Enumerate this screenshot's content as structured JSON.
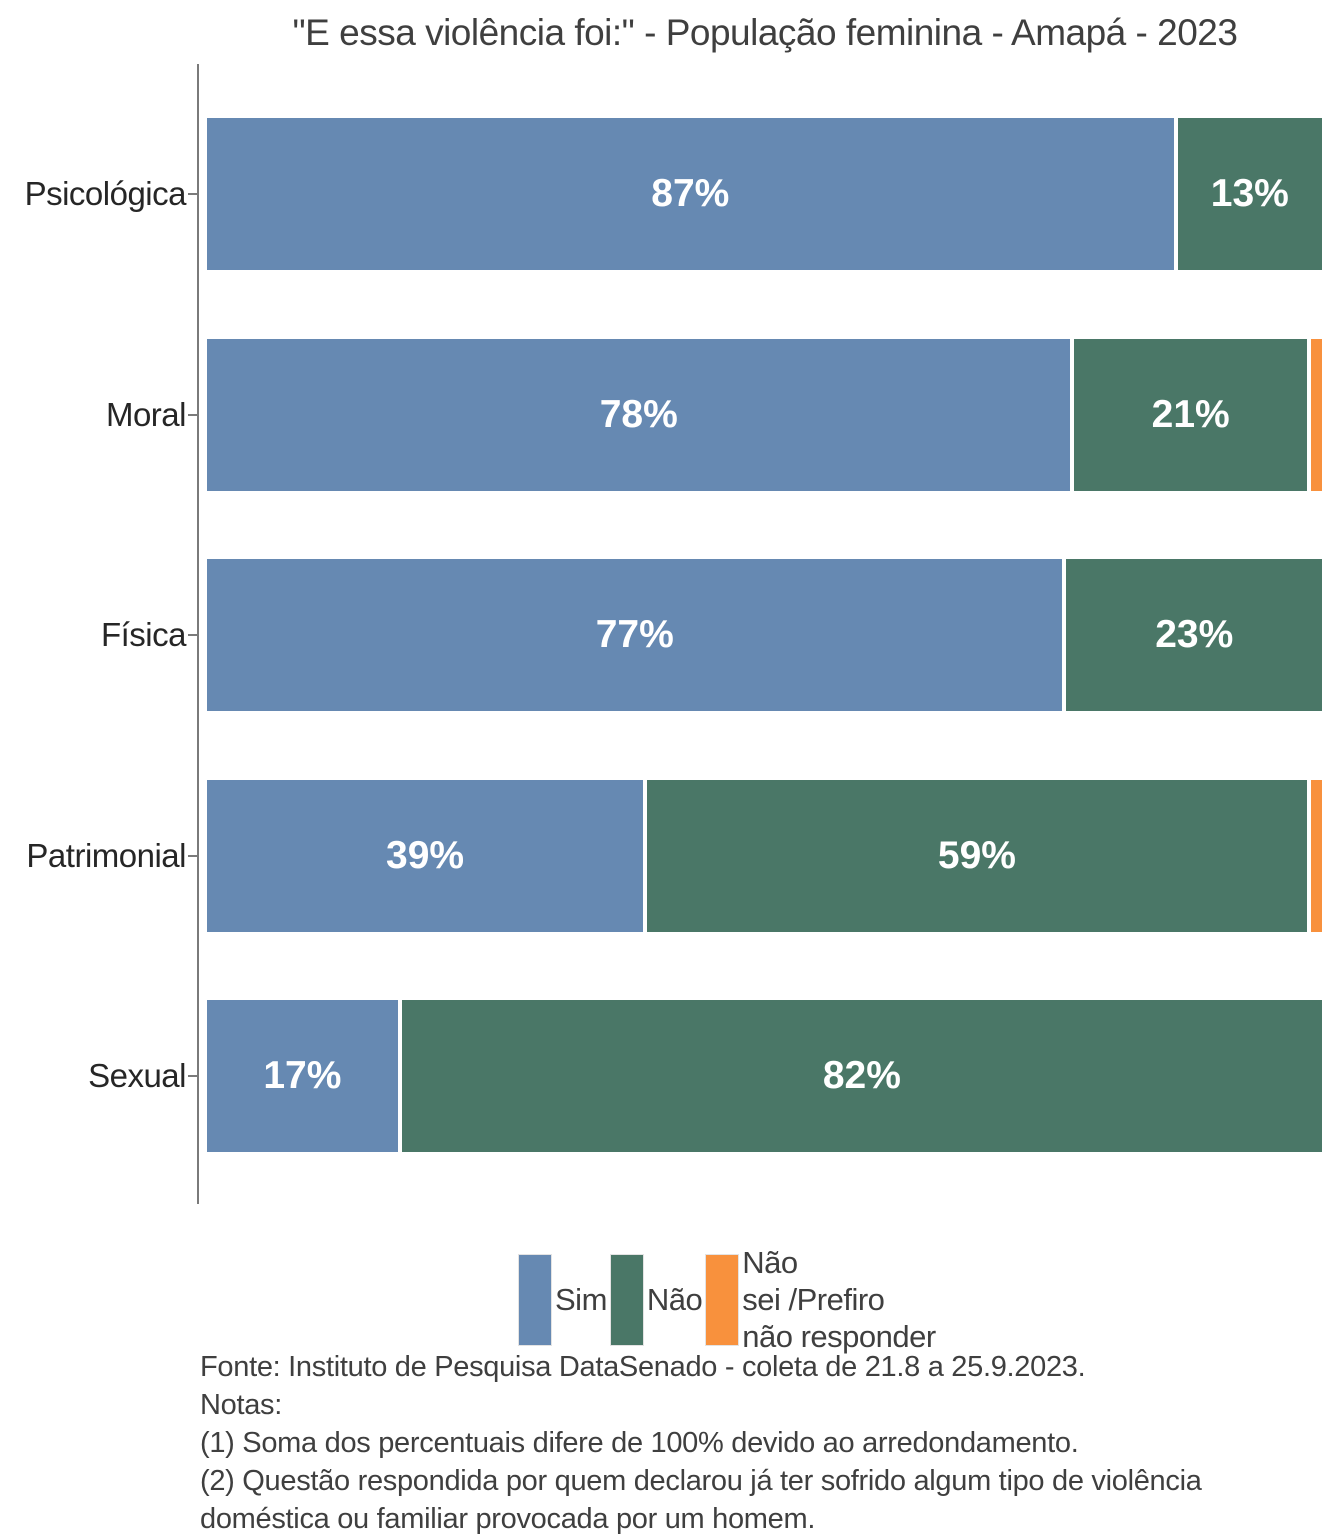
{
  "title": "\"E essa violência foi:\" - População feminina - Amapá - 2023",
  "chart_data": {
    "type": "bar",
    "orientation": "horizontal",
    "stacked": true,
    "unit": "percent",
    "xlim": [
      0,
      100
    ],
    "grid": false,
    "legend_position": "bottom",
    "title": "\"E essa violência foi:\" - População feminina - Amapá - 2023",
    "categories": [
      "Psicológica",
      "Moral",
      "Física",
      "Patrimonial",
      "Sexual"
    ],
    "series": [
      {
        "name": "Sim",
        "color": "#6689b2",
        "values": [
          87,
          78,
          77,
          39,
          17
        ]
      },
      {
        "name": "Não",
        "color": "#4a7767",
        "values": [
          13,
          21,
          23,
          59,
          82
        ]
      },
      {
        "name": "Não sei /Prefiro não responder",
        "color": "#f8913d",
        "values": [
          0,
          1,
          0,
          1,
          0
        ]
      }
    ],
    "bar_label_suffix": "%",
    "min_label_value": 4
  },
  "legend": {
    "items": [
      {
        "label": "Sim",
        "color": "#6689b2"
      },
      {
        "label": "Não",
        "color": "#4a7767"
      },
      {
        "label": "Não\nsei /Prefiro\nnão responder",
        "color": "#f8913d"
      }
    ]
  },
  "footer": {
    "lines": [
      "Fonte: Instituto de Pesquisa DataSenado - coleta de 21.8 a 25.9.2023.",
      "Notas:",
      "(1) Soma dos percentuais difere de 100% devido ao arredondamento.",
      "(2) Questão respondida por quem declarou já ter sofrido algum tipo de violência doméstica ou familiar provocada por um homem."
    ]
  },
  "colors": {
    "axis": "#7a7a7a",
    "title_text": "#3f3f3f",
    "category_text": "#262626",
    "bar_label_text": "#ffffff",
    "footer_text": "#3f3f3f"
  }
}
